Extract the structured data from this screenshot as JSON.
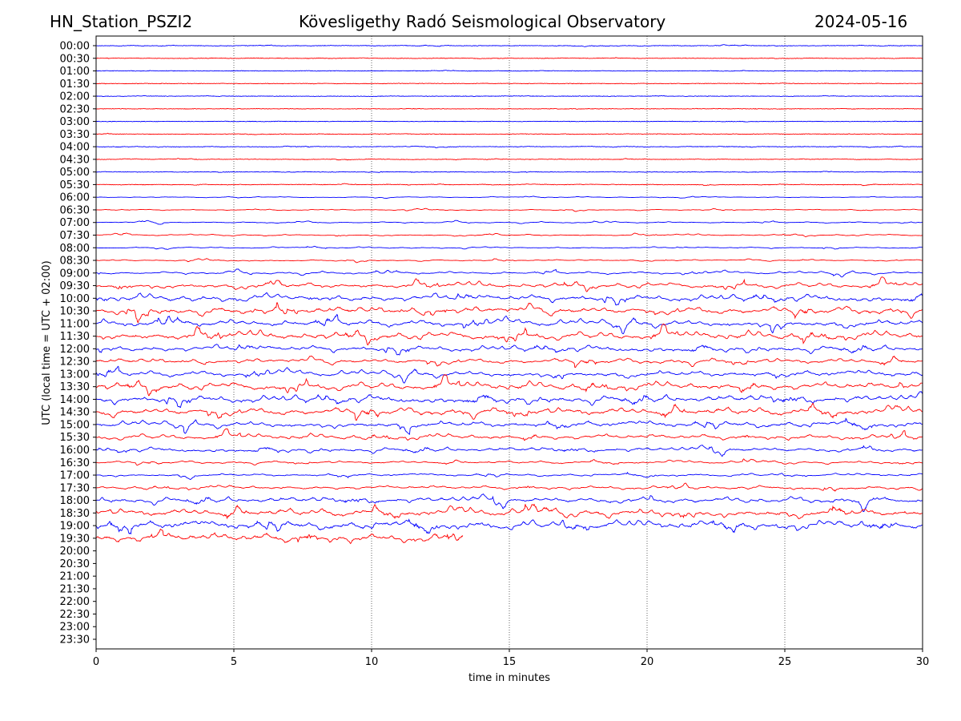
{
  "header": {
    "station": "HN_Station_PSZI2",
    "observatory": "Kövesligethy Radó Seismological Observatory",
    "date": "2024-05-16"
  },
  "chart_data": {
    "type": "line",
    "title": "Kövesligethy Radó Seismological Observatory",
    "xlabel": "time in minutes",
    "ylabel": "UTC (local time = UTC + 02:00)",
    "xlim": [
      0,
      30
    ],
    "xticks": [
      "0",
      "5",
      "10",
      "15",
      "20",
      "25",
      "30"
    ],
    "xtick_values": [
      0,
      5,
      10,
      15,
      20,
      25,
      30
    ],
    "grid": "vertical dotted at x ticks",
    "series_colors": [
      "#0000ff",
      "#ff0000"
    ],
    "rows": [
      "00:00",
      "00:30",
      "01:00",
      "01:30",
      "02:00",
      "02:30",
      "03:00",
      "03:30",
      "04:00",
      "04:30",
      "05:00",
      "05:30",
      "06:00",
      "06:30",
      "07:00",
      "07:30",
      "08:00",
      "08:30",
      "09:00",
      "09:30",
      "10:00",
      "10:30",
      "11:00",
      "11:30",
      "12:00",
      "12:30",
      "13:00",
      "13:30",
      "14:00",
      "14:30",
      "15:00",
      "15:30",
      "16:00",
      "16:30",
      "17:00",
      "17:30",
      "18:00",
      "18:30",
      "19:00",
      "19:30",
      "20:00",
      "20:30",
      "21:00",
      "21:30",
      "22:00",
      "22:30",
      "23:00",
      "23:30"
    ],
    "relative_amplitude": [
      0.08,
      0.05,
      0.05,
      0.04,
      0.04,
      0.03,
      0.03,
      0.05,
      0.08,
      0.08,
      0.06,
      0.08,
      0.12,
      0.15,
      0.18,
      0.2,
      0.18,
      0.2,
      0.35,
      0.7,
      0.9,
      1.0,
      0.9,
      1.0,
      0.8,
      0.7,
      0.8,
      1.0,
      1.0,
      1.0,
      0.8,
      0.7,
      0.6,
      0.35,
      0.35,
      0.5,
      0.8,
      1.0,
      1.1,
      1.2,
      0,
      0,
      0,
      0,
      0,
      0,
      0,
      0
    ],
    "row_end_minutes": [
      30,
      30,
      30,
      30,
      30,
      30,
      30,
      30,
      30,
      30,
      30,
      30,
      30,
      30,
      30,
      30,
      30,
      30,
      30,
      30,
      30,
      30,
      30,
      30,
      30,
      30,
      30,
      30,
      30,
      30,
      30,
      30,
      30,
      30,
      30,
      30,
      30,
      30,
      30,
      13.3,
      0,
      0,
      0,
      0,
      0,
      0,
      0,
      0
    ]
  }
}
